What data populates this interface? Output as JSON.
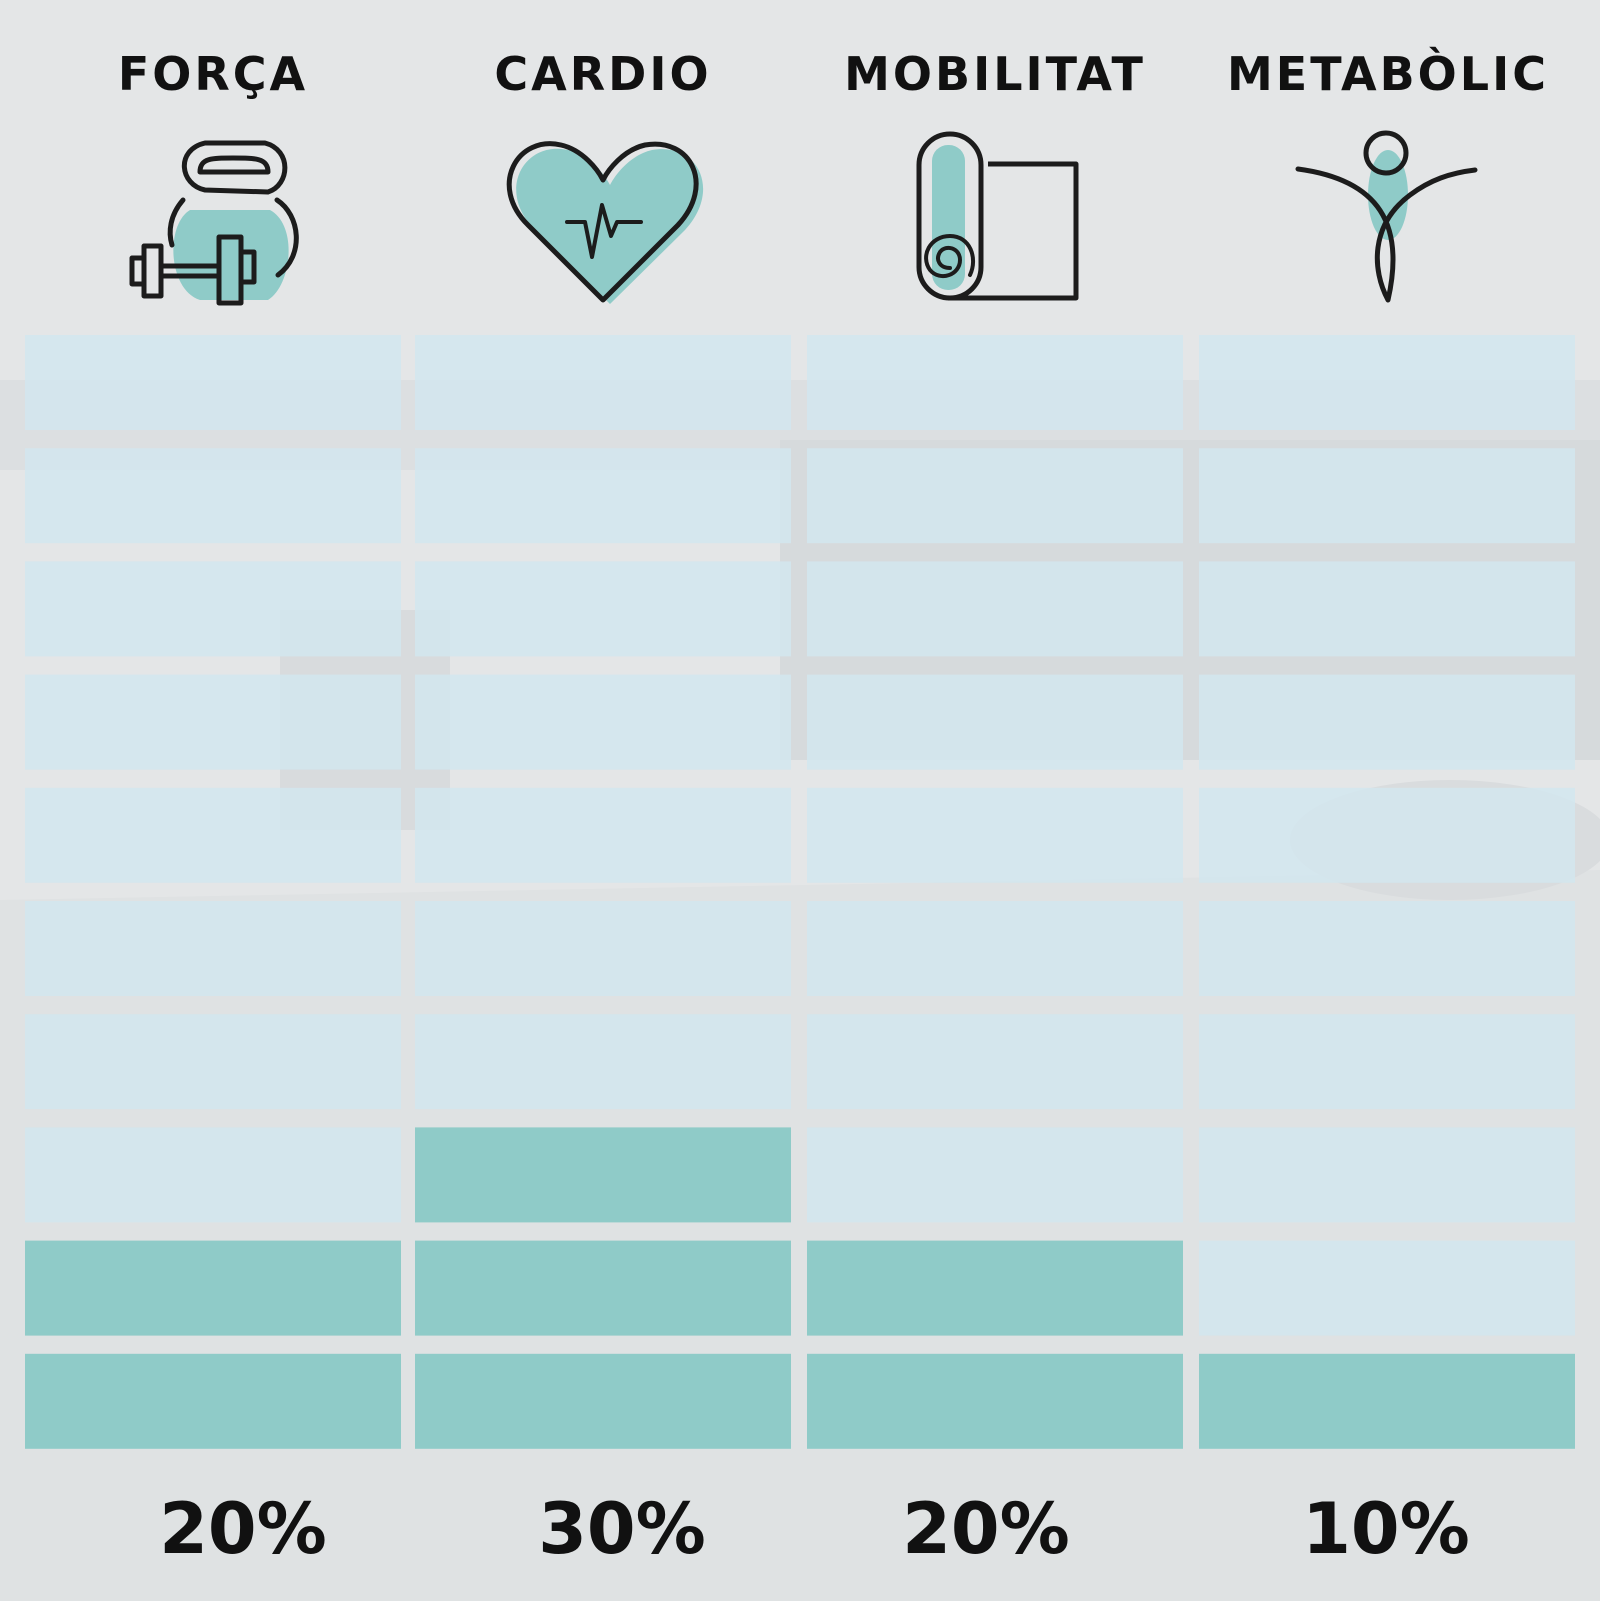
{
  "colors": {
    "background": "#e3e5e6",
    "filled_segment": "#8fcbc8",
    "empty_segment": "#d2e6ee",
    "icon_accent": "#8fcbc8",
    "text": "#111111"
  },
  "chart_data": {
    "type": "bar",
    "style": "segmented vertical bars (10 segments each, filled from bottom)",
    "segments_per_bar": 10,
    "categories": [
      "FORÇA",
      "CARDIO",
      "MOBILITAT",
      "METABÒLIC"
    ],
    "values": [
      20,
      30,
      20,
      10
    ],
    "value_labels": [
      "20%",
      "30%",
      "20%",
      "10%"
    ],
    "icons": [
      "kettlebell-dumbbell-icon",
      "heart-pulse-icon",
      "yoga-mat-icon",
      "person-figure-icon"
    ],
    "ylim": [
      0,
      100
    ]
  }
}
